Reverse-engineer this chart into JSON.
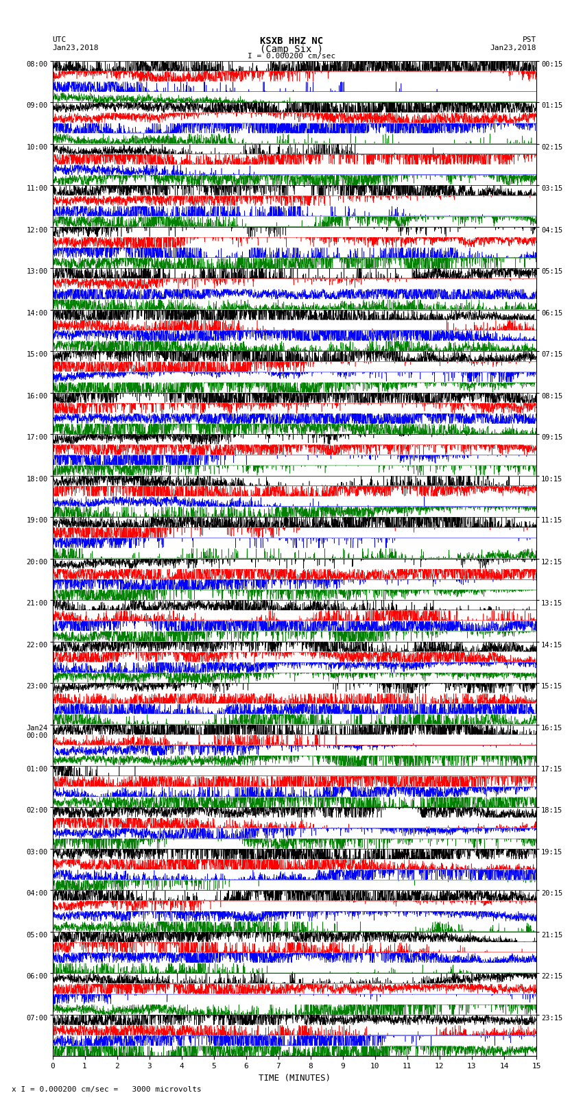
{
  "title_line1": "KSXB HHZ NC",
  "title_line2": "(Camp Six )",
  "scale_label": "I = 0.000200 cm/sec",
  "left_label_top": "UTC",
  "left_label_date": "Jan23,2018",
  "right_label_top": "PST",
  "right_label_date": "Jan23,2018",
  "bottom_label": "TIME (MINUTES)",
  "bottom_note": "x I = 0.000200 cm/sec =   3000 microvolts",
  "left_times": [
    "08:00",
    "09:00",
    "10:00",
    "11:00",
    "12:00",
    "13:00",
    "14:00",
    "15:00",
    "16:00",
    "17:00",
    "18:00",
    "19:00",
    "20:00",
    "21:00",
    "22:00",
    "23:00",
    "Jan24\n00:00",
    "01:00",
    "02:00",
    "03:00",
    "04:00",
    "05:00",
    "06:00",
    "07:00"
  ],
  "right_times": [
    "00:15",
    "01:15",
    "02:15",
    "03:15",
    "04:15",
    "05:15",
    "06:15",
    "07:15",
    "08:15",
    "09:15",
    "10:15",
    "11:15",
    "12:15",
    "13:15",
    "14:15",
    "15:15",
    "16:15",
    "17:15",
    "18:15",
    "19:15",
    "20:15",
    "21:15",
    "22:15",
    "23:15"
  ],
  "n_rows": 24,
  "minutes_per_row": 15,
  "colors_order": [
    "black",
    "red",
    "blue",
    "green"
  ],
  "bg_color": "white",
  "figsize": [
    8.5,
    16.13
  ]
}
